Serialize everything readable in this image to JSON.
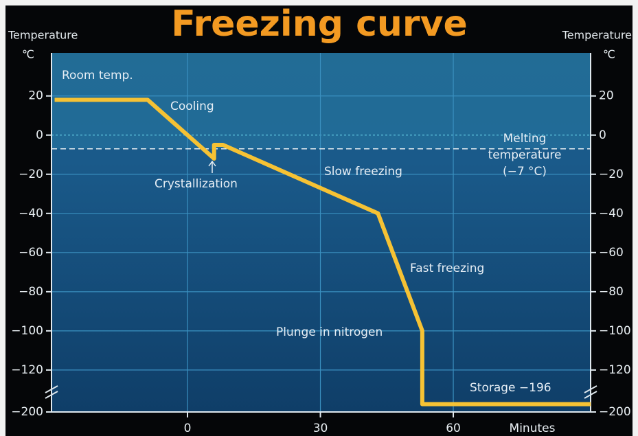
{
  "chart_data": {
    "type": "line",
    "title": "Freezing curve",
    "y_label": "Temperature",
    "y_unit": "℃",
    "x_label": "Minutes",
    "x": [
      -30,
      -9,
      6,
      6,
      8,
      43,
      53,
      53,
      91
    ],
    "series": [
      {
        "name": "Freezing curve",
        "color": "#f6c234",
        "values": [
          18,
          18,
          -12,
          -5,
          -5,
          -40,
          -100,
          -196,
          -196
        ]
      }
    ],
    "xlim": [
      -30.7,
      91
    ],
    "xticks": [
      0,
      30,
      60
    ],
    "ylim": [
      -200,
      42
    ],
    "y_break": [
      -126,
      -194
    ],
    "yticks": [
      20,
      0,
      {
        "value": -20,
        "label": "−20"
      },
      {
        "value": -40,
        "label": "−40"
      },
      {
        "value": -60,
        "label": "−60"
      },
      {
        "value": -80,
        "label": "−80"
      },
      {
        "value": -100,
        "label": "−100"
      },
      {
        "value": -120,
        "label": "−120"
      },
      {
        "value": -200,
        "label": "−200"
      }
    ],
    "grid": true,
    "melting_temperature": -7,
    "annotations": {
      "room_temp": "Room temp.",
      "cooling": "Cooling",
      "crystallization": "Crystallization",
      "slow_freezing": "Slow freezing",
      "melting": [
        "Melting",
        "temperature",
        "(−7 °C)"
      ],
      "fast_freezing": "Fast freezing",
      "plunge": "Plunge in nitrogen",
      "storage": "Storage  −196"
    }
  }
}
